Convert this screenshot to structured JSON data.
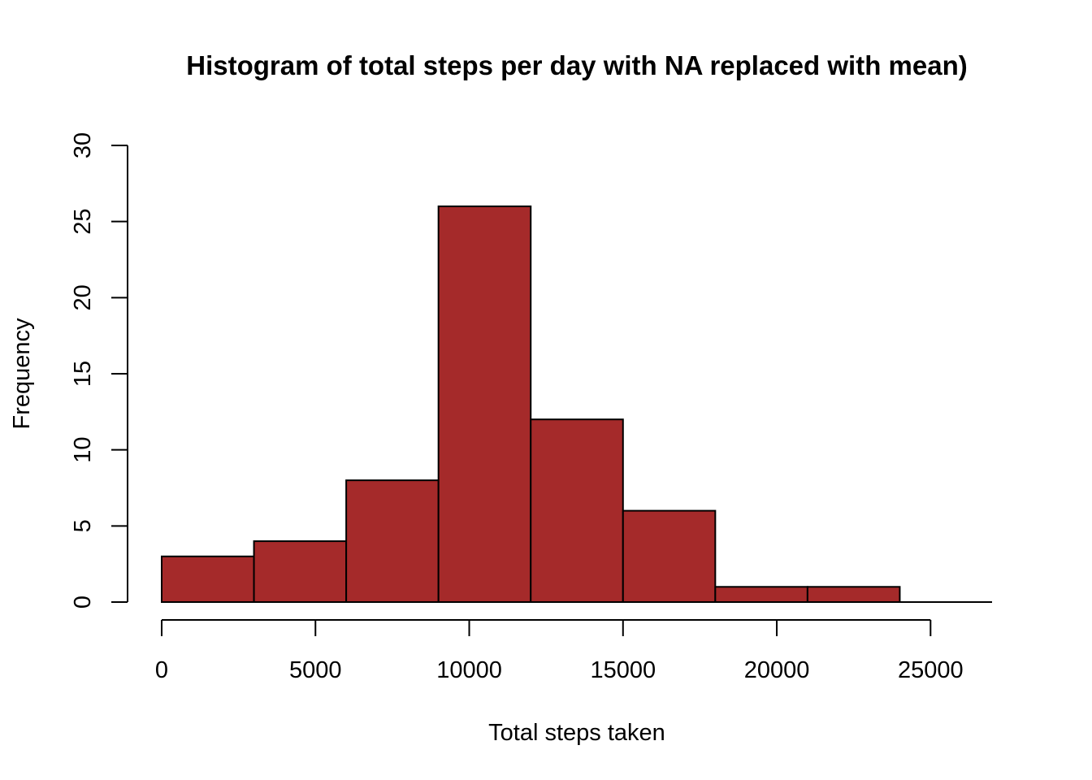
{
  "chart_data": {
    "type": "bar",
    "title": "Histogram of total steps per day with NA replaced with mean)",
    "xlabel": "Total steps taken",
    "ylabel": "Frequency",
    "bin_edges": [
      0,
      3000,
      6000,
      9000,
      12000,
      15000,
      18000,
      21000,
      24000,
      27000
    ],
    "values": [
      3,
      4,
      8,
      26,
      12,
      6,
      1,
      1,
      0
    ],
    "xlim": [
      0,
      27000
    ],
    "ylim": [
      0,
      30
    ],
    "x_ticks": [
      0,
      5000,
      10000,
      15000,
      20000,
      25000
    ],
    "y_ticks": [
      0,
      5,
      10,
      15,
      20,
      25,
      30
    ],
    "bar_color": "#a52a2a",
    "grid": false,
    "legend": "none"
  }
}
